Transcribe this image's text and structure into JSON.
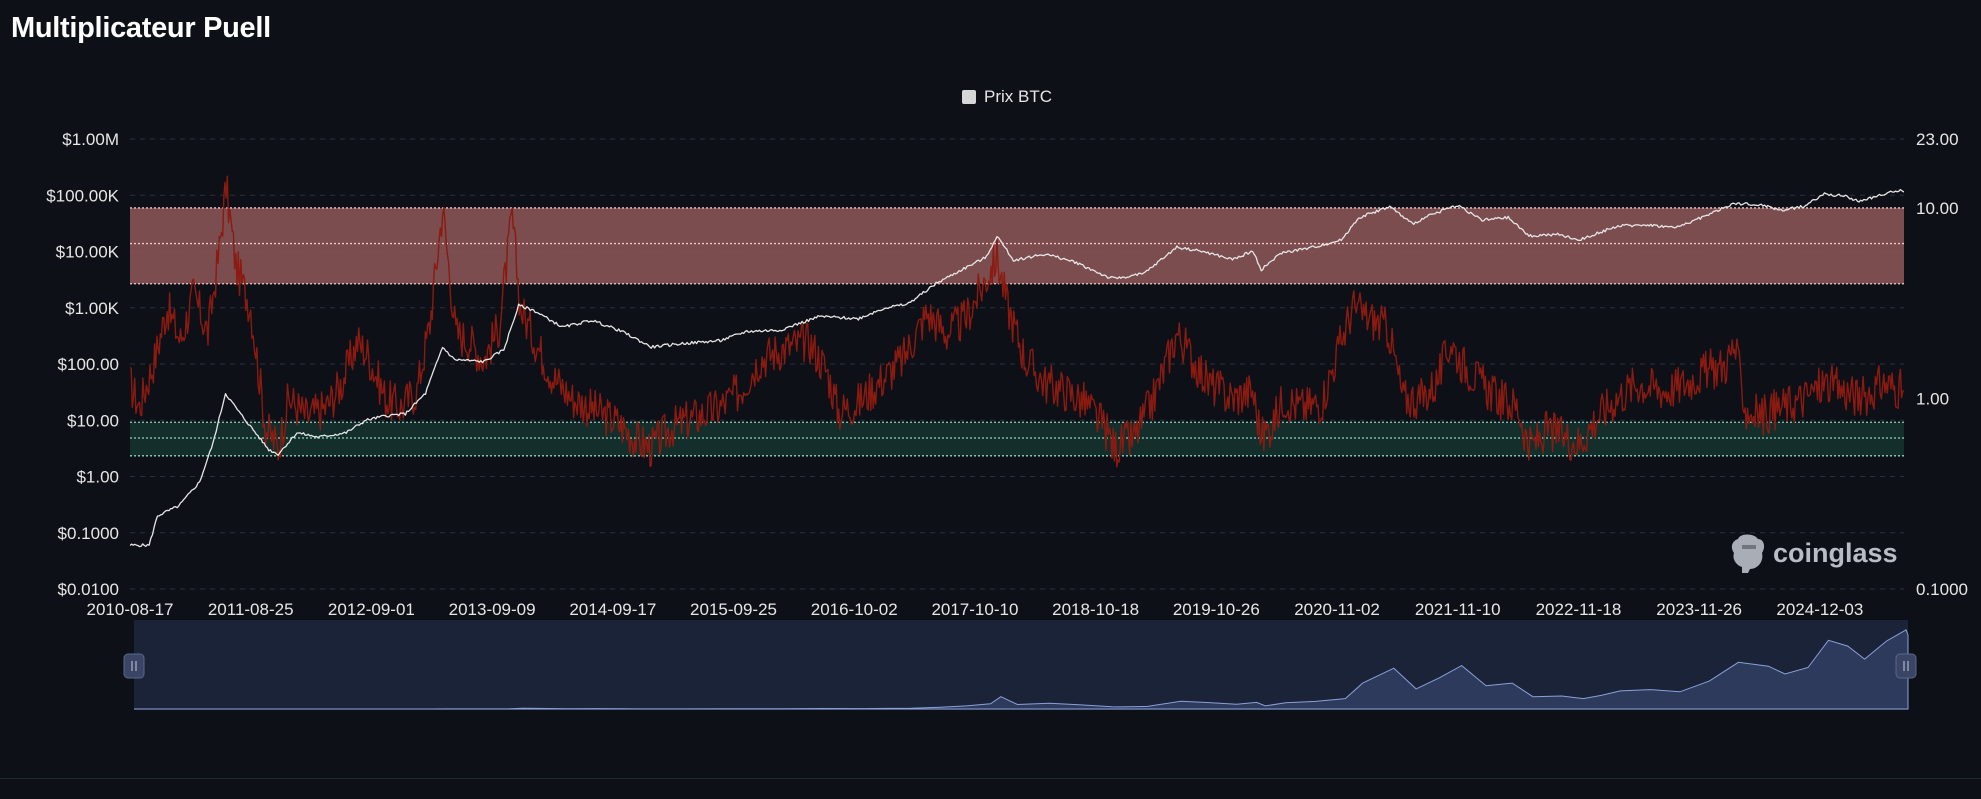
{
  "page": {
    "title": "Multiplicateur Puell",
    "watermark": "coinglass"
  },
  "legend": {
    "label": "Prix BTC",
    "color": "#d6d6d6"
  },
  "colors": {
    "background": "#0d1017",
    "price_line": "#e6e6e6",
    "puell_line": "#8b1a10",
    "overheated_zone": "#8c5558",
    "undervalued_zone": "#14302c",
    "overheated_border": "#f2c6c6",
    "undervalued_border": "#8fd4c0",
    "navigator_fill": "#2e3a5c",
    "navigator_bg": "#1b2338"
  },
  "chart_data": {
    "type": "line",
    "title": "Multiplicateur Puell",
    "y_left": {
      "scale": "log",
      "ticks": [
        "$1.00M",
        "$100.00K",
        "$10.00K",
        "$1.00K",
        "$100.00",
        "$10.00",
        "$1.00",
        "$0.1000",
        "$0.0100"
      ],
      "tick_values": [
        1000000,
        100000,
        10000,
        1000,
        100,
        10,
        1,
        0.1,
        0.01
      ],
      "range": [
        0.01,
        1000000
      ]
    },
    "y_right": {
      "scale": "log",
      "ticks": [
        "23.00",
        "10.00",
        "1.00",
        "0.1000"
      ],
      "tick_values": [
        23,
        10,
        1,
        0.1
      ],
      "range": [
        0.1,
        23
      ]
    },
    "x_ticks": [
      "2010-08-17",
      "2011-08-25",
      "2012-09-01",
      "2013-09-09",
      "2014-09-17",
      "2015-09-25",
      "2016-10-02",
      "2017-10-10",
      "2018-10-18",
      "2019-10-26",
      "2020-11-02",
      "2021-11-10",
      "2022-11-18",
      "2023-11-26",
      "2024-12-03"
    ],
    "x_range": [
      "2010-08-17",
      "2025-08-20"
    ],
    "bands": [
      {
        "name": "overheated",
        "y_right": [
          4.0,
          10.0
        ],
        "mid": 6.5
      },
      {
        "name": "undervalued",
        "y_right": [
          0.5,
          0.75
        ],
        "mid": 0.62
      }
    ],
    "series": [
      {
        "name": "Prix BTC",
        "axis": "left",
        "x": [
          "2010-08-17",
          "2010-10-15",
          "2010-11-10",
          "2011-01-15",
          "2011-03-20",
          "2011-05-01",
          "2011-06-08",
          "2011-07-20",
          "2011-10-20",
          "2011-11-18",
          "2012-01-15",
          "2012-03-20",
          "2012-06-15",
          "2012-08-15",
          "2012-10-15",
          "2012-12-15",
          "2013-02-15",
          "2013-04-09",
          "2013-05-15",
          "2013-08-15",
          "2013-10-15",
          "2013-11-30",
          "2014-01-15",
          "2014-04-15",
          "2014-07-15",
          "2014-10-15",
          "2015-01-14",
          "2015-04-15",
          "2015-08-15",
          "2015-11-05",
          "2016-02-15",
          "2016-06-17",
          "2016-10-15",
          "2017-01-05",
          "2017-03-15",
          "2017-06-12",
          "2017-09-01",
          "2017-11-15",
          "2017-12-17",
          "2018-02-06",
          "2018-05-15",
          "2018-08-15",
          "2018-11-25",
          "2018-12-15",
          "2019-03-15",
          "2019-06-26",
          "2019-09-15",
          "2019-12-15",
          "2020-02-15",
          "2020-03-13",
          "2020-05-15",
          "2020-08-15",
          "2020-11-15",
          "2021-01-08",
          "2021-04-14",
          "2021-06-22",
          "2021-09-01",
          "2021-11-10",
          "2022-01-24",
          "2022-04-15",
          "2022-06-18",
          "2022-09-15",
          "2022-11-21",
          "2023-01-15",
          "2023-03-15",
          "2023-06-15",
          "2023-09-15",
          "2023-12-15",
          "2024-03-14",
          "2024-06-15",
          "2024-08-05",
          "2024-10-15",
          "2024-12-17",
          "2025-02-15",
          "2025-04-08",
          "2025-06-15",
          "2025-08-14",
          "2025-08-20"
        ],
        "values": [
          0.06,
          0.06,
          0.2,
          0.3,
          0.8,
          4,
          30,
          14,
          3,
          2.5,
          6,
          5,
          6,
          10,
          12,
          13,
          30,
          200,
          120,
          110,
          180,
          1100,
          900,
          450,
          600,
          380,
          200,
          230,
          260,
          380,
          400,
          700,
          640,
          1000,
          1150,
          2700,
          4800,
          8000,
          19000,
          7000,
          9000,
          6500,
          3500,
          3300,
          4000,
          12000,
          10000,
          7200,
          10200,
          4800,
          9500,
          11700,
          16000,
          40000,
          63000,
          31000,
          48000,
          67000,
          36000,
          40000,
          19000,
          20000,
          16000,
          21000,
          28000,
          30000,
          26500,
          43000,
          72000,
          66000,
          54000,
          64000,
          106000,
          97000,
          77000,
          105000,
          122000,
          114000
        ]
      },
      {
        "name": "Multiplicateur Puell",
        "axis": "right",
        "x": [
          "2010-08-17",
          "2010-09-15",
          "2010-11-01",
          "2010-12-10",
          "2011-01-20",
          "2011-03-01",
          "2011-04-15",
          "2011-05-20",
          "2011-06-10",
          "2011-07-10",
          "2011-08-25",
          "2011-10-10",
          "2011-11-18",
          "2011-12-20",
          "2012-02-15",
          "2012-04-15",
          "2012-06-01",
          "2012-07-20",
          "2012-08-20",
          "2012-10-15",
          "2012-12-01",
          "2013-01-20",
          "2013-03-01",
          "2013-04-09",
          "2013-05-20",
          "2013-07-01",
          "2013-08-15",
          "2013-10-01",
          "2013-11-10",
          "2013-12-05",
          "2014-01-20",
          "2014-03-15",
          "2014-05-15",
          "2014-08-01",
          "2014-10-01",
          "2014-12-01",
          "2015-01-14",
          "2015-03-15",
          "2015-06-01",
          "2015-08-15",
          "2015-10-15",
          "2015-12-15",
          "2016-02-15",
          "2016-05-15",
          "2016-07-09",
          "2016-08-15",
          "2016-10-15",
          "2016-12-15",
          "2017-03-01",
          "2017-05-15",
          "2017-07-15",
          "2017-09-10",
          "2017-10-20",
          "2017-12-17",
          "2018-01-20",
          "2018-03-15",
          "2018-05-15",
          "2018-07-15",
          "2018-09-15",
          "2018-11-15",
          "2018-12-15",
          "2019-02-15",
          "2019-04-15",
          "2019-06-26",
          "2019-08-15",
          "2019-10-01",
          "2019-12-15",
          "2020-02-15",
          "2020-03-13",
          "2020-04-20",
          "2020-05-20",
          "2020-07-15",
          "2020-09-15",
          "2020-11-15",
          "2020-12-20",
          "2021-02-15",
          "2021-04-10",
          "2021-05-25",
          "2021-07-20",
          "2021-09-05",
          "2021-10-20",
          "2021-11-15",
          "2022-01-20",
          "2022-03-15",
          "2022-05-15",
          "2022-06-18",
          "2022-08-15",
          "2022-10-15",
          "2022-11-21",
          "2023-01-15",
          "2023-03-15",
          "2023-05-15",
          "2023-08-15",
          "2023-10-15",
          "2023-12-20",
          "2024-02-15",
          "2024-03-14",
          "2024-04-20",
          "2024-06-15",
          "2024-08-05",
          "2024-10-15",
          "2024-12-15",
          "2025-02-15",
          "2025-04-08",
          "2025-06-15",
          "2025-08-20"
        ],
        "values": [
          1.2,
          0.9,
          1.6,
          3.0,
          2.0,
          3.5,
          2.2,
          6.0,
          13.0,
          5.0,
          3.0,
          0.7,
          0.55,
          1.0,
          0.8,
          0.9,
          1.2,
          2.0,
          1.7,
          1.0,
          0.9,
          1.1,
          2.5,
          10.0,
          2.2,
          2.0,
          1.6,
          2.4,
          9.0,
          3.0,
          2.0,
          1.3,
          1.0,
          0.85,
          0.75,
          0.6,
          0.55,
          0.7,
          0.8,
          0.9,
          1.1,
          1.6,
          1.8,
          2.0,
          1.4,
          0.85,
          0.95,
          1.2,
          1.6,
          2.8,
          2.2,
          2.6,
          3.5,
          5.5,
          3.0,
          1.6,
          1.2,
          1.1,
          0.95,
          0.7,
          0.55,
          0.62,
          1.0,
          2.2,
          1.6,
          1.2,
          1.0,
          1.1,
          0.62,
          0.75,
          1.0,
          0.9,
          0.95,
          2.0,
          3.0,
          2.6,
          2.3,
          1.0,
          1.0,
          1.2,
          2.0,
          1.6,
          1.2,
          1.0,
          0.9,
          0.55,
          0.68,
          0.62,
          0.58,
          0.8,
          1.0,
          1.2,
          1.1,
          1.2,
          1.4,
          1.5,
          1.9,
          0.85,
          0.82,
          0.9,
          1.0,
          1.2,
          1.1,
          1.0,
          1.2,
          1.1
        ]
      }
    ]
  }
}
